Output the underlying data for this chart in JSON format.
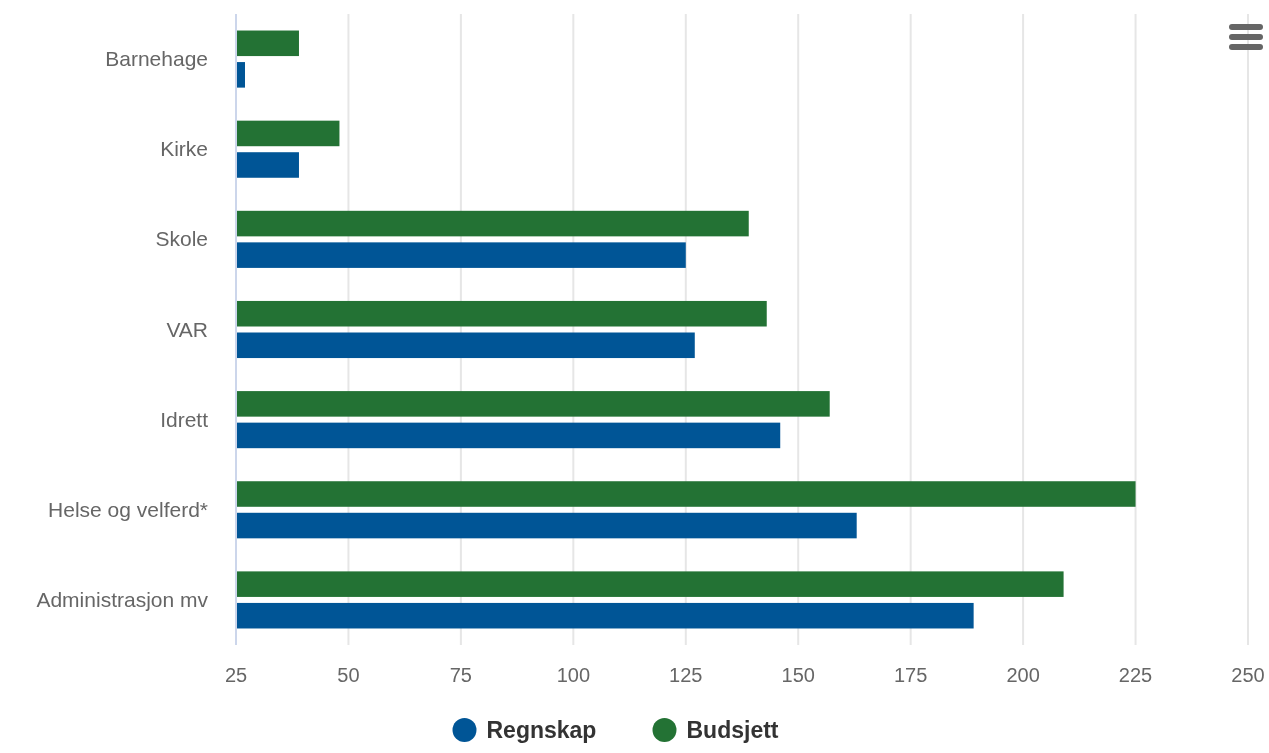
{
  "chart_data": {
    "type": "bar",
    "orientation": "horizontal",
    "categories": [
      "Barnehage",
      "Kirke",
      "Skole",
      "VAR",
      "Idrett",
      "Helse og velferd*",
      "Administrasjon mv"
    ],
    "series": [
      {
        "name": "Regnskap",
        "color": "#005596",
        "values": [
          27,
          39,
          125,
          127,
          146,
          163,
          189
        ]
      },
      {
        "name": "Budsjett",
        "color": "#237234",
        "values": [
          39,
          48,
          139,
          143,
          157,
          225,
          209
        ]
      }
    ],
    "xlim": [
      25,
      250
    ],
    "xticks": [
      25,
      50,
      75,
      100,
      125,
      150,
      175,
      200,
      225,
      250
    ],
    "grid": "x",
    "legend": "bottom"
  }
}
